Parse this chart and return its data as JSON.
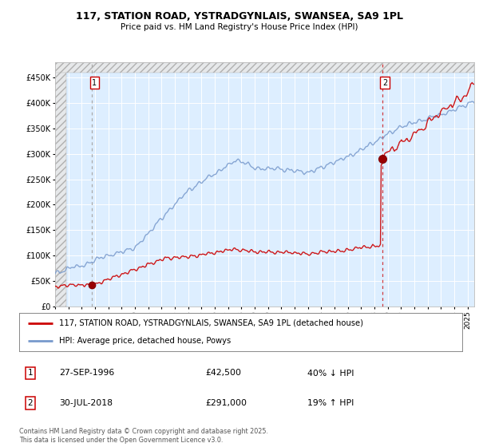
{
  "title1": "117, STATION ROAD, YSTRADGYNLAIS, SWANSEA, SA9 1PL",
  "title2": "Price paid vs. HM Land Registry's House Price Index (HPI)",
  "legend1": "117, STATION ROAD, YSTRADGYNLAIS, SWANSEA, SA9 1PL (detached house)",
  "legend2": "HPI: Average price, detached house, Powys",
  "annotation1_date": "27-SEP-1996",
  "annotation1_price": "£42,500",
  "annotation1_hpi": "40% ↓ HPI",
  "annotation2_date": "30-JUL-2018",
  "annotation2_price": "£291,000",
  "annotation2_hpi": "19% ↑ HPI",
  "footer": "Contains HM Land Registry data © Crown copyright and database right 2025.\nThis data is licensed under the Open Government Licence v3.0.",
  "bg_color": "#ddeeff",
  "red_color": "#cc0000",
  "blue_color": "#7799cc",
  "ylim_max": 480000,
  "ylim_min": 0,
  "hatch_above": 460000,
  "year_start": 1994,
  "year_end": 2025,
  "point1_year": 1996.75,
  "point1_val": 42500,
  "point2_year": 2018.58,
  "point2_val": 291000
}
